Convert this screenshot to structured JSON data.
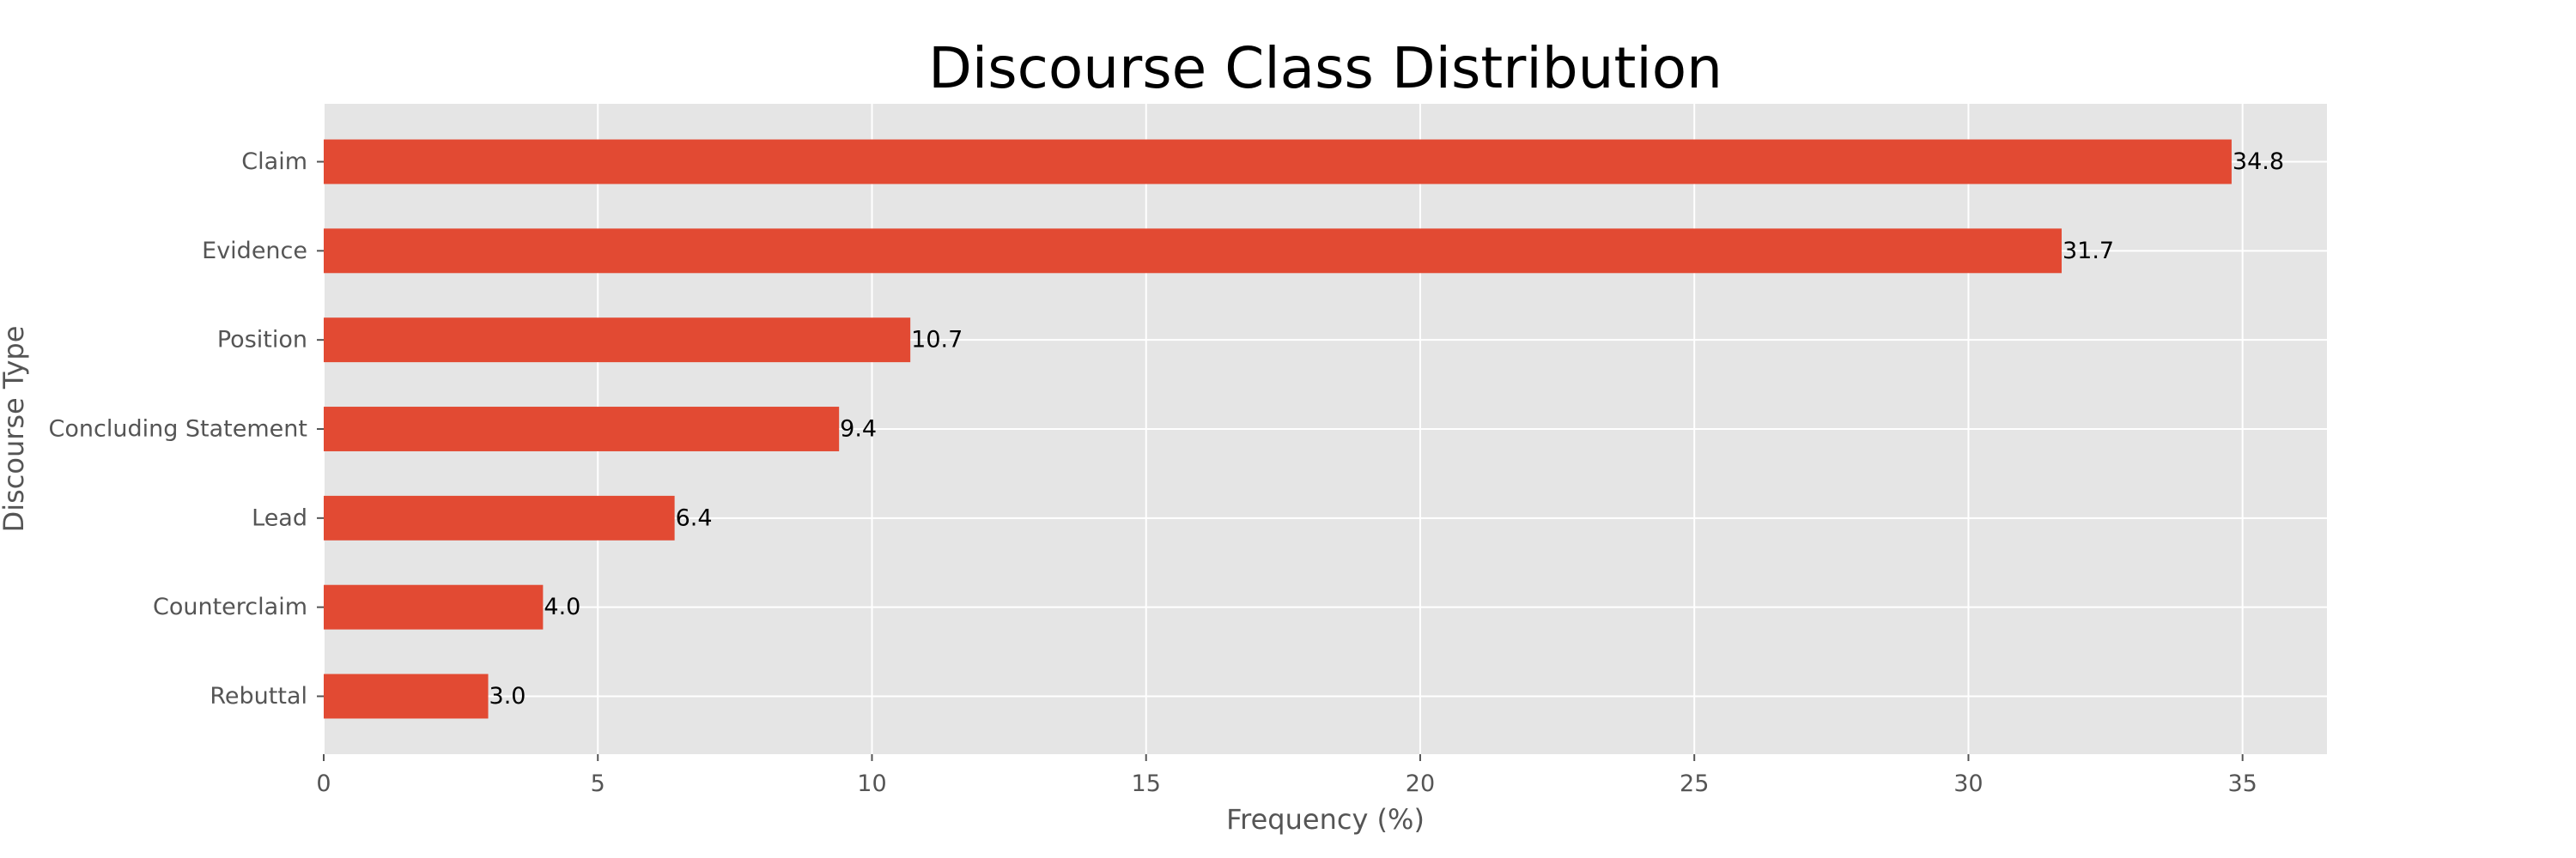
{
  "chart_data": {
    "type": "bar",
    "orientation": "horizontal",
    "title": "Discourse Class Distribution",
    "xlabel": "Frequency (%)",
    "ylabel": "Discourse Type",
    "categories": [
      "Claim",
      "Evidence",
      "Position",
      "Concluding Statement",
      "Lead",
      "Counterclaim",
      "Rebuttal"
    ],
    "values": [
      34.8,
      31.7,
      10.7,
      9.4,
      6.4,
      4.0,
      3.0
    ],
    "data_labels": [
      "34.8",
      "31.7",
      "10.7",
      "9.4",
      "6.4",
      "4.0",
      "3.0"
    ],
    "xlim": [
      0,
      36.54
    ],
    "xticks": [
      0,
      5,
      10,
      15,
      20,
      25,
      30,
      35
    ],
    "grid": true,
    "legend": "none",
    "colors": {
      "bar": "#E24A33",
      "plot_background": "#E5E5E5",
      "grid": "#FFFFFF",
      "tick_text": "#555555",
      "title_text": "#000000",
      "data_label_text": "#000000"
    }
  }
}
